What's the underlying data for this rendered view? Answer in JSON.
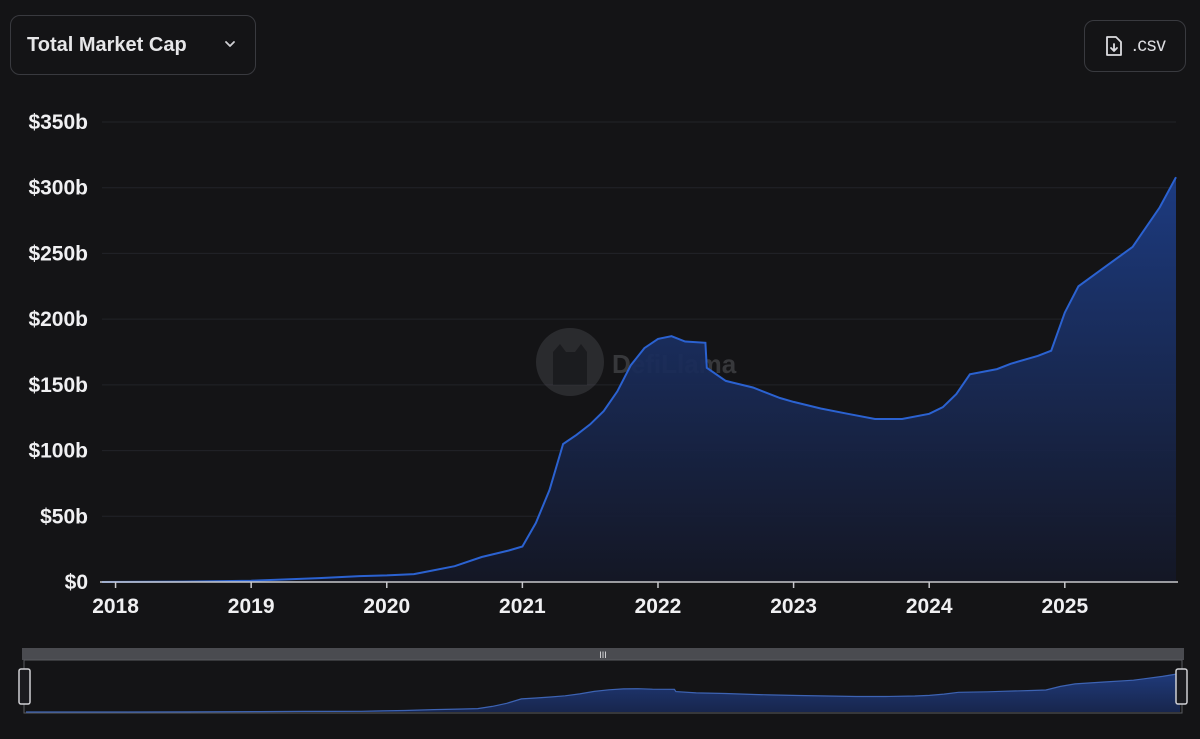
{
  "toolbar": {
    "metric_label": "Total Market Cap",
    "csv_label": ".csv"
  },
  "watermark": {
    "text": "DefiLlama"
  },
  "colors": {
    "background": "#141416",
    "line": "#2b62d1",
    "area_top": "#1d3d86",
    "area_bottom": "#141726",
    "grid": "#222328",
    "axis_text": "#f0f0f2"
  },
  "slider": {
    "range_start": 0,
    "range_end": 1,
    "handle_glyph": "III"
  },
  "chart_data": {
    "type": "area",
    "title": "",
    "xlabel": "",
    "ylabel": "",
    "ylim": [
      0,
      350
    ],
    "yunit": "b",
    "xlim": [
      2017.9,
      2025.82
    ],
    "y_ticks": [
      {
        "v": 0,
        "label": "$0"
      },
      {
        "v": 50,
        "label": "$50b"
      },
      {
        "v": 100,
        "label": "$100b"
      },
      {
        "v": 150,
        "label": "$150b"
      },
      {
        "v": 200,
        "label": "$200b"
      },
      {
        "v": 250,
        "label": "$250b"
      },
      {
        "v": 300,
        "label": "$300b"
      },
      {
        "v": 350,
        "label": "$350b"
      }
    ],
    "x_ticks": [
      {
        "v": 2018,
        "label": "2018"
      },
      {
        "v": 2019,
        "label": "2019"
      },
      {
        "v": 2020,
        "label": "2020"
      },
      {
        "v": 2021,
        "label": "2021"
      },
      {
        "v": 2022,
        "label": "2022"
      },
      {
        "v": 2023,
        "label": "2023"
      },
      {
        "v": 2024,
        "label": "2024"
      },
      {
        "v": 2025,
        "label": "2025"
      }
    ],
    "grid": true,
    "series": [
      {
        "x": [
          2017.9,
          2018.5,
          2019.0,
          2019.5,
          2019.8,
          2020.0,
          2020.2,
          2020.3,
          2020.5,
          2020.7,
          2020.9,
          2021.0,
          2021.1,
          2021.2,
          2021.3,
          2021.4,
          2021.5,
          2021.6,
          2021.7,
          2021.8,
          2021.9,
          2022.0,
          2022.1,
          2022.2,
          2022.35,
          2022.36,
          2022.5,
          2022.7,
          2022.9,
          2023.0,
          2023.2,
          2023.4,
          2023.6,
          2023.8,
          2024.0,
          2024.1,
          2024.2,
          2024.3,
          2024.5,
          2024.6,
          2024.8,
          2024.9,
          2025.0,
          2025.1,
          2025.3,
          2025.5,
          2025.7,
          2025.82
        ],
        "y": [
          0,
          0.3,
          1,
          3,
          4.5,
          5,
          6,
          8,
          12,
          19,
          24,
          27,
          45,
          70,
          105,
          112,
          120,
          130,
          145,
          165,
          178,
          185,
          187,
          183,
          182,
          163,
          153,
          148,
          140,
          137,
          132,
          128,
          124,
          124,
          128,
          133,
          143,
          158,
          162,
          166,
          172,
          176,
          205,
          225,
          240,
          255,
          285,
          308
        ]
      }
    ]
  }
}
